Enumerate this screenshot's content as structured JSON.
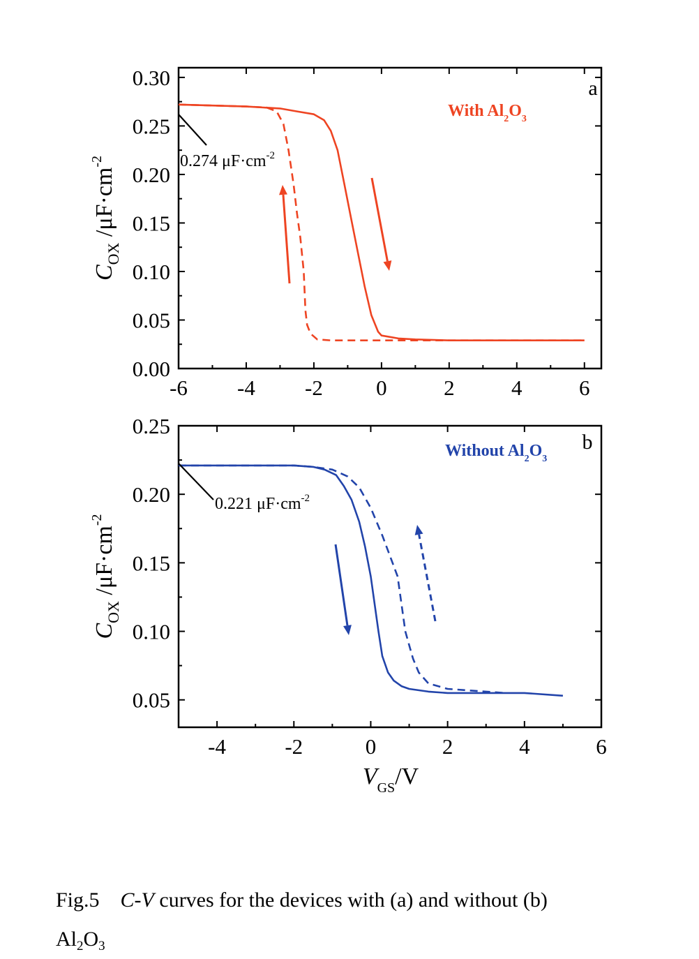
{
  "chart_data": [
    {
      "type": "line",
      "panel_label": "a",
      "legend_text": "With Al",
      "legend_sub1": "2",
      "legend_mid": "O",
      "legend_sub2": "3",
      "ylabel_main": "C",
      "ylabel_sub": "OX",
      "ylabel_unit": " /μF·cm",
      "ylabel_sup": "-2",
      "xlim": [
        -6,
        6.5
      ],
      "ylim": [
        0,
        0.31
      ],
      "xticks": [
        -6,
        -4,
        -2,
        0,
        2,
        4,
        6
      ],
      "yticks": [
        0.0,
        0.05,
        0.1,
        0.15,
        0.2,
        0.25,
        0.3
      ],
      "ytick_labels": [
        "0.00",
        "0.05",
        "0.10",
        "0.15",
        "0.20",
        "0.25",
        "0.30"
      ],
      "xtick_labels": [
        "-6",
        "-4",
        "-2",
        "0",
        "2",
        "4",
        "6"
      ],
      "color": "#ee4422",
      "annotation_text": "0.274  μF·cm",
      "annotation_sup": "-2",
      "annotation_value": 0.274,
      "series": [
        {
          "style": "solid",
          "x": [
            -6,
            -5,
            -4,
            -3.5,
            -3,
            -2.5,
            -2,
            -1.7,
            -1.5,
            -1.3,
            -1.1,
            -0.9,
            -0.7,
            -0.5,
            -0.3,
            -0.1,
            0,
            0.5,
            1,
            2,
            3,
            4,
            5,
            6
          ],
          "y": [
            0.272,
            0.271,
            0.27,
            0.269,
            0.268,
            0.265,
            0.262,
            0.256,
            0.245,
            0.225,
            0.19,
            0.155,
            0.12,
            0.085,
            0.055,
            0.038,
            0.034,
            0.031,
            0.03,
            0.029,
            0.029,
            0.029,
            0.029,
            0.029
          ]
        },
        {
          "style": "dashed",
          "x": [
            -6,
            -5,
            -4,
            -3.4,
            -3.1,
            -2.9,
            -2.75,
            -2.6,
            -2.5,
            -2.4,
            -2.3,
            -2.25,
            -2.2,
            -2.1,
            -1.9,
            -1.5,
            -1,
            0,
            1,
            2,
            3,
            4,
            5,
            6
          ],
          "y": [
            0.272,
            0.271,
            0.27,
            0.269,
            0.265,
            0.252,
            0.225,
            0.19,
            0.16,
            0.135,
            0.1,
            0.06,
            0.045,
            0.036,
            0.03,
            0.029,
            0.029,
            0.029,
            0.029,
            0.029,
            0.029,
            0.029,
            0.029,
            0.029
          ]
        }
      ]
    },
    {
      "type": "line",
      "panel_label": "b",
      "legend_text": "Without Al",
      "legend_sub1": "2",
      "legend_mid": "O",
      "legend_sub2": "3",
      "ylabel_main": "C",
      "ylabel_sub": "OX",
      "ylabel_unit": " /μF·cm",
      "ylabel_sup": "-2",
      "xlabel_main": "V",
      "xlabel_sub": "GS",
      "xlabel_unit": "/V",
      "xlim": [
        -5,
        6
      ],
      "ylim": [
        0.03,
        0.25
      ],
      "xticks": [
        -4,
        -2,
        0,
        2,
        4,
        6
      ],
      "yticks": [
        0.05,
        0.1,
        0.15,
        0.2,
        0.25
      ],
      "ytick_labels": [
        "0.05",
        "0.10",
        "0.15",
        "0.20",
        "0.25"
      ],
      "xtick_labels": [
        "-4",
        "-2",
        "0",
        "2",
        "4",
        "6"
      ],
      "color": "#2244aa",
      "annotation_text": "0.221  μF·cm",
      "annotation_sup": "-2",
      "annotation_value": 0.221,
      "series": [
        {
          "style": "solid",
          "x": [
            -5,
            -4,
            -3,
            -2,
            -1.5,
            -1.2,
            -0.9,
            -0.7,
            -0.5,
            -0.3,
            -0.15,
            0,
            0.1,
            0.2,
            0.3,
            0.45,
            0.6,
            0.8,
            1,
            1.5,
            2,
            3,
            4,
            5
          ],
          "y": [
            0.221,
            0.221,
            0.221,
            0.221,
            0.22,
            0.218,
            0.214,
            0.206,
            0.196,
            0.18,
            0.162,
            0.14,
            0.12,
            0.1,
            0.082,
            0.07,
            0.064,
            0.06,
            0.058,
            0.056,
            0.055,
            0.055,
            0.055,
            0.053
          ]
        },
        {
          "style": "dashed",
          "x": [
            -5,
            -4,
            -3,
            -2,
            -1.5,
            -1,
            -0.6,
            -0.3,
            0,
            0.3,
            0.5,
            0.7,
            0.8,
            0.9,
            1.0,
            1.1,
            1.25,
            1.5,
            2,
            3,
            3.5
          ],
          "y": [
            0.221,
            0.221,
            0.221,
            0.221,
            0.22,
            0.218,
            0.213,
            0.205,
            0.19,
            0.17,
            0.155,
            0.14,
            0.12,
            0.1,
            0.09,
            0.08,
            0.07,
            0.062,
            0.058,
            0.056,
            0.055
          ]
        }
      ]
    }
  ],
  "caption": {
    "fig_num": "Fig.5",
    "cv_c": "C",
    "cv_dash": "-",
    "cv_v": "V",
    "text": " curves for the devices with (a) and without (b)",
    "line2_a": "Al",
    "line2_sub1": "2",
    "line2_b": "O",
    "line2_sub2": "3"
  }
}
